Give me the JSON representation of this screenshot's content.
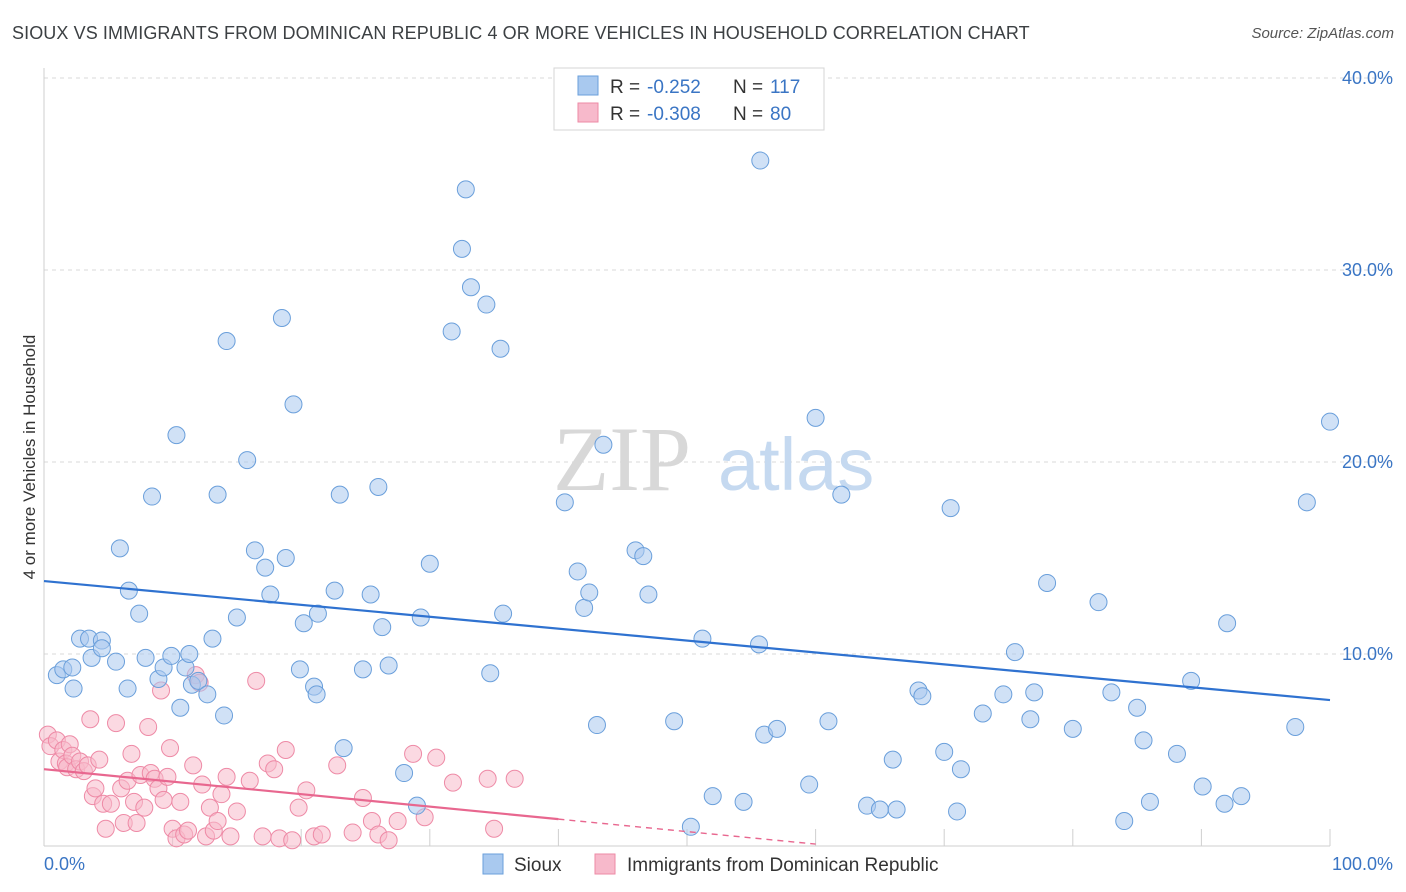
{
  "title": "SIOUX VS IMMIGRANTS FROM DOMINICAN REPUBLIC 4 OR MORE VEHICLES IN HOUSEHOLD CORRELATION CHART",
  "source": "Source: ZipAtlas.com",
  "watermark": {
    "zip": "ZIP",
    "atlas": "atlas"
  },
  "legend": {
    "rows": [
      {
        "r_label": "R =",
        "r_value": "-0.252",
        "n_label": "N =",
        "n_value": "117",
        "color": "#a9c9ef"
      },
      {
        "r_label": "R =",
        "r_value": "-0.308",
        "n_label": "N =",
        "n_value": "80",
        "color": "#f7b9cb"
      }
    ]
  },
  "colors": {
    "sioux": "#a9c9ef",
    "sioux_stroke": "#6a9fdb",
    "sioux_line": "#2f72d0",
    "dr": "#f7b9cb",
    "dr_stroke": "#ee8aa6",
    "dr_line": "#e8678f",
    "tick_text": "#3a75c4",
    "grid": "#d8d8d8"
  },
  "chart_data": {
    "type": "scatter",
    "title": "SIOUX VS IMMIGRANTS FROM DOMINICAN REPUBLIC 4 OR MORE VEHICLES IN HOUSEHOLD CORRELATION CHART",
    "xlabel": "",
    "ylabel": "4 or more Vehicles in Household",
    "xlim": [
      0,
      100
    ],
    "ylim": [
      0,
      40
    ],
    "x_tick_labels": [
      "0.0%",
      "100.0%"
    ],
    "y_ticks": [
      10,
      20,
      30,
      40
    ],
    "y_tick_labels": [
      "10.0%",
      "20.0%",
      "30.0%",
      "40.0%"
    ],
    "grid": true,
    "legend_position": "top-center",
    "series": [
      {
        "name": "Sioux",
        "color": "#a9c9ef",
        "trend": {
          "x": [
            0,
            100
          ],
          "y": [
            13.8,
            7.6
          ]
        },
        "points": [
          [
            1,
            8.9
          ],
          [
            1.5,
            9.2
          ],
          [
            2.2,
            9.3
          ],
          [
            2.3,
            8.2
          ],
          [
            2.8,
            10.8
          ],
          [
            3.5,
            10.8
          ],
          [
            3.7,
            9.8
          ],
          [
            4.5,
            10.7
          ],
          [
            4.5,
            10.3
          ],
          [
            5.6,
            9.6
          ],
          [
            5.9,
            15.5
          ],
          [
            6.5,
            8.2
          ],
          [
            6.6,
            13.3
          ],
          [
            7.4,
            12.1
          ],
          [
            7.9,
            9.8
          ],
          [
            8.4,
            18.2
          ],
          [
            8.9,
            8.7
          ],
          [
            9.3,
            9.3
          ],
          [
            9.9,
            9.9
          ],
          [
            10.3,
            21.4
          ],
          [
            10.6,
            7.2
          ],
          [
            11,
            9.3
          ],
          [
            11.3,
            10
          ],
          [
            11.5,
            8.4
          ],
          [
            12,
            8.6
          ],
          [
            12.7,
            7.9
          ],
          [
            13.1,
            10.8
          ],
          [
            13.5,
            18.3
          ],
          [
            14,
            6.8
          ],
          [
            14.2,
            26.3
          ],
          [
            15,
            11.9
          ],
          [
            15.8,
            20.1
          ],
          [
            16.4,
            15.4
          ],
          [
            17.2,
            14.5
          ],
          [
            17.6,
            13.1
          ],
          [
            18.5,
            27.5
          ],
          [
            18.8,
            15
          ],
          [
            19.4,
            23
          ],
          [
            19.9,
            9.2
          ],
          [
            20.2,
            11.6
          ],
          [
            21,
            8.3
          ],
          [
            21.2,
            7.9
          ],
          [
            21.3,
            12.1
          ],
          [
            22.6,
            13.3
          ],
          [
            23,
            18.3
          ],
          [
            23.3,
            5.1
          ],
          [
            24.8,
            9.2
          ],
          [
            25.4,
            13.1
          ],
          [
            26,
            18.7
          ],
          [
            26.3,
            11.4
          ],
          [
            26.8,
            9.4
          ],
          [
            28,
            3.8
          ],
          [
            29,
            2.1
          ],
          [
            29.3,
            11.9
          ],
          [
            30,
            14.7
          ],
          [
            31.7,
            26.8
          ],
          [
            32.5,
            31.1
          ],
          [
            32.8,
            34.2
          ],
          [
            33.2,
            29.1
          ],
          [
            34.4,
            28.2
          ],
          [
            34.7,
            9
          ],
          [
            35.5,
            25.9
          ],
          [
            35.7,
            12.1
          ],
          [
            40.5,
            17.9
          ],
          [
            41.5,
            14.3
          ],
          [
            42,
            12.4
          ],
          [
            42.4,
            13.2
          ],
          [
            43,
            6.3
          ],
          [
            43.5,
            20.9
          ],
          [
            46,
            15.4
          ],
          [
            46.6,
            15.1
          ],
          [
            47,
            13.1
          ],
          [
            49,
            6.5
          ],
          [
            50.3,
            1
          ],
          [
            51.2,
            10.8
          ],
          [
            52,
            2.6
          ],
          [
            54.4,
            2.3
          ],
          [
            55.6,
            10.5
          ],
          [
            55.7,
            35.7
          ],
          [
            56,
            5.8
          ],
          [
            57,
            6.1
          ],
          [
            59.5,
            3.2
          ],
          [
            60,
            22.3
          ],
          [
            61,
            6.5
          ],
          [
            62,
            18.3
          ],
          [
            64,
            2.1
          ],
          [
            65,
            1.9
          ],
          [
            66,
            4.5
          ],
          [
            66.3,
            1.9
          ],
          [
            68,
            8.1
          ],
          [
            68.3,
            7.8
          ],
          [
            70,
            4.9
          ],
          [
            70.5,
            17.6
          ],
          [
            71,
            1.8
          ],
          [
            71.3,
            4
          ],
          [
            73,
            6.9
          ],
          [
            74.6,
            7.9
          ],
          [
            75.5,
            10.1
          ],
          [
            76.7,
            6.6
          ],
          [
            77,
            8
          ],
          [
            78,
            13.7
          ],
          [
            80,
            6.1
          ],
          [
            82,
            12.7
          ],
          [
            83,
            8
          ],
          [
            84,
            1.3
          ],
          [
            85,
            7.2
          ],
          [
            85.5,
            5.5
          ],
          [
            86,
            2.3
          ],
          [
            88.1,
            4.8
          ],
          [
            89.2,
            8.6
          ],
          [
            90.1,
            3.1
          ],
          [
            91.8,
            2.2
          ],
          [
            92,
            11.6
          ],
          [
            93.1,
            2.6
          ],
          [
            97.3,
            6.2
          ],
          [
            98.2,
            17.9
          ],
          [
            100,
            22.1
          ]
        ]
      },
      {
        "name": "Immigrants from Dominican Republic",
        "color": "#f7b9cb",
        "trend": {
          "x": [
            0,
            40
          ],
          "y": [
            4.0,
            1.4
          ],
          "dashed_to": {
            "x": 60,
            "y": 0.1
          }
        },
        "points": [
          [
            0.3,
            5.8
          ],
          [
            0.5,
            5.2
          ],
          [
            1,
            5.5
          ],
          [
            1.2,
            4.4
          ],
          [
            1.5,
            5
          ],
          [
            1.7,
            4.3
          ],
          [
            1.8,
            4.1
          ],
          [
            2,
            5.3
          ],
          [
            2.2,
            4.7
          ],
          [
            2.5,
            4
          ],
          [
            2.8,
            4.4
          ],
          [
            3.1,
            3.9
          ],
          [
            3.4,
            4.2
          ],
          [
            3.6,
            6.6
          ],
          [
            3.8,
            2.6
          ],
          [
            4,
            3
          ],
          [
            4.3,
            4.5
          ],
          [
            4.6,
            2.2
          ],
          [
            4.8,
            0.9
          ],
          [
            5.2,
            2.2
          ],
          [
            5.6,
            6.4
          ],
          [
            6,
            3
          ],
          [
            6.2,
            1.2
          ],
          [
            6.5,
            3.4
          ],
          [
            6.8,
            4.8
          ],
          [
            7,
            2.3
          ],
          [
            7.2,
            1.2
          ],
          [
            7.5,
            3.7
          ],
          [
            7.8,
            2
          ],
          [
            8.1,
            6.2
          ],
          [
            8.3,
            3.8
          ],
          [
            8.6,
            3.5
          ],
          [
            8.9,
            3
          ],
          [
            9.1,
            8.1
          ],
          [
            9.3,
            2.4
          ],
          [
            9.6,
            3.6
          ],
          [
            9.8,
            5.1
          ],
          [
            10,
            0.9
          ],
          [
            10.3,
            0.4
          ],
          [
            10.6,
            2.3
          ],
          [
            10.9,
            0.6
          ],
          [
            11.2,
            0.8
          ],
          [
            11.6,
            4.2
          ],
          [
            11.8,
            8.9
          ],
          [
            12.1,
            8.5
          ],
          [
            12.3,
            3.2
          ],
          [
            12.6,
            0.5
          ],
          [
            12.9,
            2
          ],
          [
            13.2,
            0.8
          ],
          [
            13.5,
            1.3
          ],
          [
            13.8,
            2.7
          ],
          [
            14.2,
            3.6
          ],
          [
            14.5,
            0.5
          ],
          [
            15,
            1.8
          ],
          [
            16,
            3.4
          ],
          [
            16.5,
            8.6
          ],
          [
            17,
            0.5
          ],
          [
            17.4,
            4.3
          ],
          [
            17.9,
            4
          ],
          [
            18.3,
            0.4
          ],
          [
            18.8,
            5
          ],
          [
            19.3,
            0.3
          ],
          [
            19.8,
            2
          ],
          [
            20.4,
            2.9
          ],
          [
            21,
            0.5
          ],
          [
            21.6,
            0.6
          ],
          [
            22.8,
            4.2
          ],
          [
            24,
            0.7
          ],
          [
            24.8,
            2.5
          ],
          [
            25.5,
            1.3
          ],
          [
            26,
            0.6
          ],
          [
            26.8,
            0.3
          ],
          [
            27.5,
            1.3
          ],
          [
            28.7,
            4.8
          ],
          [
            29.6,
            1.5
          ],
          [
            30.5,
            4.6
          ],
          [
            31.8,
            3.3
          ],
          [
            34.5,
            3.5
          ],
          [
            35,
            0.9
          ],
          [
            36.6,
            3.5
          ]
        ]
      }
    ]
  },
  "bottom_legend": [
    {
      "label": "Sioux",
      "color": "#a9c9ef"
    },
    {
      "label": "Immigrants from Dominican Republic",
      "color": "#f7b9cb"
    }
  ]
}
